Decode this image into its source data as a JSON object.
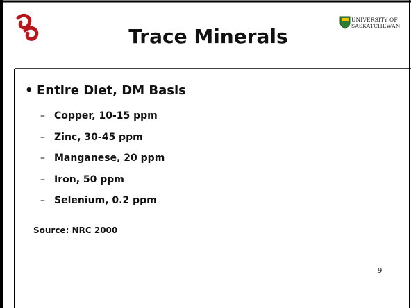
{
  "header": {
    "title": "Trace Minerals",
    "university": [
      "UNIVERSITY OF",
      "SASKATCHEWAN"
    ]
  },
  "body": {
    "bullet": "Entire Diet, DM Basis",
    "items": [
      "Copper, 10-15 ppm",
      "Zinc, 30-45 ppm",
      "Manganese, 20 ppm",
      "Iron, 50 ppm",
      "Selenium, 0.2 ppm"
    ],
    "source": "Source: NRC 2000"
  },
  "footer": {
    "page": "9"
  }
}
